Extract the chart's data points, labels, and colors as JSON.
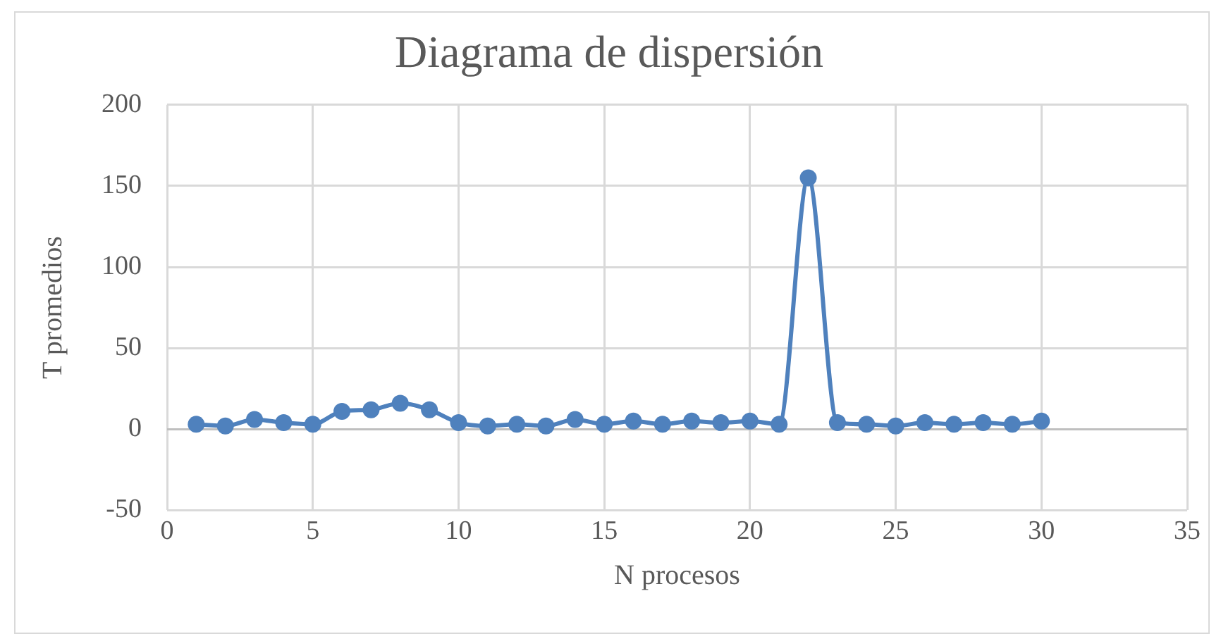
{
  "chart_data": {
    "type": "line",
    "title": "Diagrama de dispersión",
    "xlabel": "N procesos",
    "ylabel": "T promedios",
    "x": [
      1,
      2,
      3,
      4,
      5,
      6,
      7,
      8,
      9,
      10,
      11,
      12,
      13,
      14,
      15,
      16,
      17,
      18,
      19,
      20,
      21,
      22,
      23,
      24,
      25,
      26,
      27,
      28,
      29,
      30
    ],
    "series": [
      {
        "color": "#4f81bd",
        "values": [
          3,
          2,
          6,
          4,
          3,
          11,
          12,
          16,
          12,
          4,
          2,
          3,
          2,
          6,
          3,
          5,
          3,
          5,
          4,
          5,
          3,
          155,
          4,
          3,
          2,
          4,
          3,
          4,
          3,
          5
        ]
      }
    ],
    "xlim": [
      0,
      35
    ],
    "xticks": [
      0,
      5,
      10,
      15,
      20,
      25,
      30,
      35
    ],
    "ylim": [
      -50,
      200
    ],
    "yticks": [
      -50,
      0,
      50,
      100,
      150,
      200
    ],
    "grid": true,
    "legend": false,
    "marker": "circle",
    "line_style": "solid"
  }
}
